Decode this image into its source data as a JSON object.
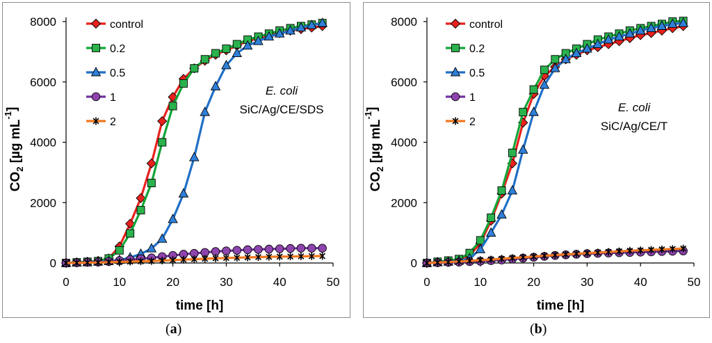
{
  "chart_data": [
    {
      "panel": "a",
      "caption": "a",
      "type": "line",
      "xlabel": "time [h]",
      "ylabel": "CO",
      "ylabel_sub": "2",
      "ylabel_unit": " [µg mL",
      "ylabel_sup": "-1",
      "ylabel_end": "]",
      "xlim": [
        0,
        50
      ],
      "ylim": [
        0,
        8000
      ],
      "xticks": [
        "0",
        "10",
        "20",
        "30",
        "40",
        "50"
      ],
      "yticks": [
        "0",
        "2000",
        "4000",
        "6000",
        "8000"
      ],
      "annotation": {
        "organism": "E. coli",
        "sample": "SiC/Ag/CE/SDS"
      },
      "legend_position": "top-left",
      "series": [
        {
          "name": "control",
          "color": "#e8211d",
          "marker": "diamond",
          "marker_fill": "#e8211d",
          "x": [
            0,
            2,
            4,
            6,
            8,
            10,
            12,
            14,
            16,
            18,
            20,
            22,
            24,
            26,
            28,
            30,
            32,
            34,
            36,
            38,
            40,
            42,
            44,
            46,
            48
          ],
          "y": [
            0,
            20,
            40,
            70,
            150,
            550,
            1300,
            2150,
            3300,
            4700,
            5500,
            6100,
            6450,
            6700,
            6900,
            7050,
            7200,
            7350,
            7450,
            7550,
            7620,
            7700,
            7750,
            7800,
            7850
          ]
        },
        {
          "name": "0.2",
          "color": "#13a538",
          "marker": "square",
          "marker_fill": "#2ab24d",
          "x": [
            0,
            2,
            4,
            6,
            8,
            10,
            12,
            14,
            16,
            18,
            20,
            22,
            24,
            26,
            28,
            30,
            32,
            34,
            36,
            38,
            40,
            42,
            44,
            46,
            48
          ],
          "y": [
            0,
            20,
            40,
            60,
            150,
            420,
            980,
            1750,
            2650,
            4000,
            5200,
            5950,
            6450,
            6750,
            6950,
            7100,
            7250,
            7400,
            7500,
            7600,
            7700,
            7780,
            7850,
            7900,
            7950
          ]
        },
        {
          "name": "0.5",
          "color": "#1f6fc6",
          "marker": "triangle",
          "marker_fill": "#2f80d8",
          "x": [
            0,
            2,
            4,
            6,
            8,
            10,
            12,
            14,
            16,
            18,
            20,
            22,
            24,
            26,
            28,
            30,
            32,
            34,
            36,
            38,
            40,
            42,
            44,
            46,
            48
          ],
          "y": [
            0,
            10,
            20,
            40,
            60,
            100,
            180,
            300,
            480,
            800,
            1450,
            2300,
            3500,
            5000,
            5850,
            6550,
            6950,
            7200,
            7350,
            7500,
            7600,
            7700,
            7800,
            7880,
            7950
          ]
        },
        {
          "name": "1",
          "color": "#7030a0",
          "marker": "circle",
          "marker_fill": "#8e44ad",
          "x": [
            0,
            2,
            4,
            6,
            8,
            10,
            12,
            14,
            16,
            18,
            20,
            22,
            24,
            26,
            28,
            30,
            32,
            34,
            36,
            38,
            40,
            42,
            44,
            46,
            48
          ],
          "y": [
            0,
            10,
            20,
            30,
            50,
            80,
            110,
            140,
            170,
            210,
            250,
            290,
            320,
            350,
            380,
            400,
            420,
            440,
            450,
            460,
            470,
            480,
            490,
            490,
            490
          ]
        },
        {
          "name": "2",
          "color": "#f07820",
          "marker": "star",
          "marker_fill": "#000000",
          "x": [
            0,
            2,
            4,
            6,
            8,
            10,
            12,
            14,
            16,
            18,
            20,
            22,
            24,
            26,
            28,
            30,
            32,
            34,
            36,
            38,
            40,
            42,
            44,
            46,
            48
          ],
          "y": [
            0,
            5,
            10,
            15,
            25,
            35,
            45,
            55,
            65,
            80,
            95,
            110,
            125,
            140,
            155,
            165,
            175,
            185,
            195,
            205,
            210,
            215,
            220,
            225,
            230
          ]
        }
      ]
    },
    {
      "panel": "b",
      "caption": "b",
      "type": "line",
      "xlabel": "time [h]",
      "ylabel": "CO",
      "ylabel_sub": "2",
      "ylabel_unit": " [µg mL",
      "ylabel_sup": "-1",
      "ylabel_end": "]",
      "xlim": [
        0,
        50
      ],
      "ylim": [
        0,
        8000
      ],
      "xticks": [
        "0",
        "10",
        "20",
        "30",
        "40",
        "50"
      ],
      "yticks": [
        "0",
        "2000",
        "4000",
        "6000",
        "8000"
      ],
      "annotation": {
        "organism": "E. coli",
        "sample": "SiC/Ag/CE/T"
      },
      "legend_position": "top-left",
      "series": [
        {
          "name": "control",
          "color": "#e8211d",
          "marker": "diamond",
          "marker_fill": "#e8211d",
          "x": [
            0,
            2,
            4,
            6,
            8,
            10,
            12,
            14,
            16,
            18,
            20,
            22,
            24,
            26,
            28,
            30,
            32,
            34,
            36,
            38,
            40,
            42,
            44,
            46,
            48
          ],
          "y": [
            0,
            30,
            60,
            100,
            250,
            650,
            1400,
            2300,
            3300,
            4650,
            5600,
            6200,
            6500,
            6750,
            6900,
            7050,
            7150,
            7250,
            7350,
            7450,
            7550,
            7620,
            7700,
            7780,
            7850
          ]
        },
        {
          "name": "0.2",
          "color": "#13a538",
          "marker": "square",
          "marker_fill": "#2ab24d",
          "x": [
            0,
            2,
            4,
            6,
            8,
            10,
            12,
            14,
            16,
            18,
            20,
            22,
            24,
            26,
            28,
            30,
            32,
            34,
            36,
            38,
            40,
            42,
            44,
            46,
            48
          ],
          "y": [
            0,
            40,
            80,
            130,
            330,
            750,
            1500,
            2400,
            3650,
            5000,
            5750,
            6400,
            6750,
            6950,
            7100,
            7250,
            7400,
            7500,
            7600,
            7700,
            7780,
            7850,
            7920,
            8000,
            8020
          ]
        },
        {
          "name": "0.5",
          "color": "#1f6fc6",
          "marker": "triangle",
          "marker_fill": "#2f80d8",
          "x": [
            0,
            2,
            4,
            6,
            8,
            10,
            12,
            14,
            16,
            18,
            20,
            22,
            24,
            26,
            28,
            30,
            32,
            34,
            36,
            38,
            40,
            42,
            44,
            46,
            48
          ],
          "y": [
            0,
            20,
            40,
            70,
            150,
            450,
            1000,
            1600,
            2400,
            3750,
            5000,
            5900,
            6450,
            6750,
            6950,
            7100,
            7250,
            7400,
            7500,
            7600,
            7700,
            7780,
            7850,
            7920,
            7950
          ]
        },
        {
          "name": "1",
          "color": "#7030a0",
          "marker": "circle",
          "marker_fill": "#8e44ad",
          "x": [
            0,
            2,
            4,
            6,
            8,
            10,
            12,
            14,
            16,
            18,
            20,
            22,
            24,
            26,
            28,
            30,
            32,
            34,
            36,
            38,
            40,
            42,
            44,
            46,
            48
          ],
          "y": [
            0,
            10,
            20,
            30,
            45,
            60,
            80,
            100,
            130,
            160,
            190,
            220,
            250,
            270,
            290,
            310,
            320,
            330,
            340,
            350,
            360,
            370,
            380,
            390,
            400
          ]
        },
        {
          "name": "2",
          "color": "#f07820",
          "marker": "star",
          "marker_fill": "#000000",
          "x": [
            0,
            2,
            4,
            6,
            8,
            10,
            12,
            14,
            16,
            18,
            20,
            22,
            24,
            26,
            28,
            30,
            32,
            34,
            36,
            38,
            40,
            42,
            44,
            46,
            48
          ],
          "y": [
            0,
            15,
            30,
            50,
            70,
            95,
            115,
            140,
            165,
            190,
            215,
            240,
            265,
            285,
            305,
            325,
            345,
            365,
            385,
            405,
            420,
            435,
            450,
            465,
            480
          ]
        }
      ]
    }
  ]
}
